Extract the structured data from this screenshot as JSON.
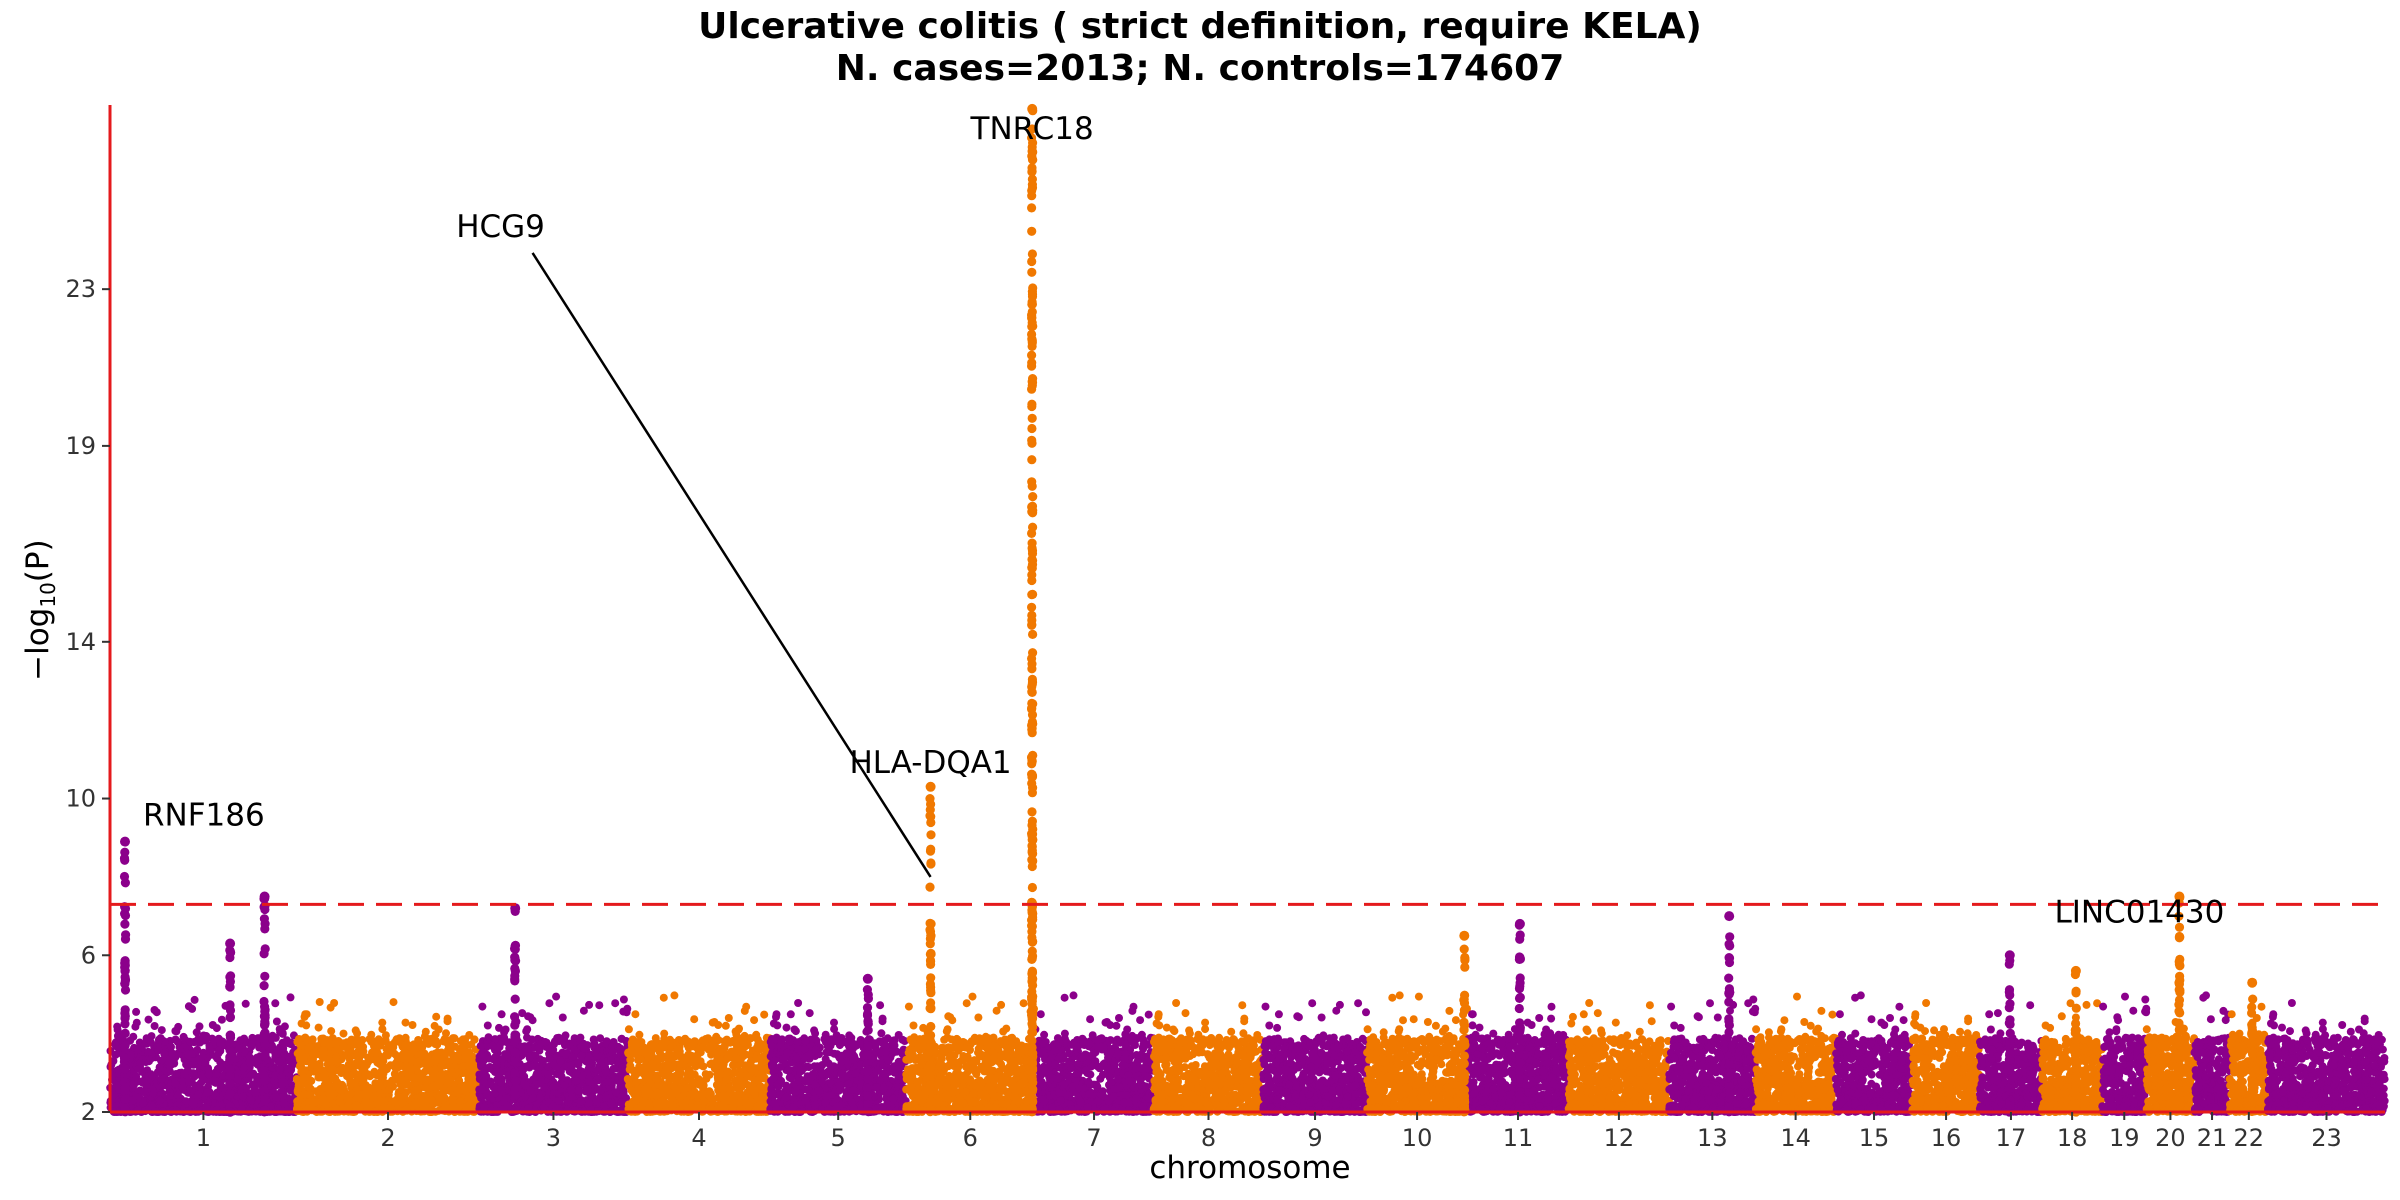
{
  "title_line1": "Ulcerative colitis ( strict definition, require KELA)",
  "title_line2": "N. cases=2013; N. controls=174607",
  "chart_data": {
    "type": "scatter",
    "subtype": "manhattan",
    "xlabel": "chromosome",
    "ylabel_prefix": "−log",
    "ylabel_sub": "10",
    "ylabel_suffix": "(P)",
    "ylim": [
      2,
      27.7
    ],
    "yticks": [
      2,
      6,
      10,
      14,
      19,
      23
    ],
    "significance_line": 7.3,
    "colors": {
      "odd": "#8B008B",
      "even": "#F07800",
      "axis": "#E41A1C",
      "threshold": "#E41A1C"
    },
    "chromosomes": [
      {
        "label": "1",
        "size": 249
      },
      {
        "label": "2",
        "size": 243
      },
      {
        "label": "3",
        "size": 198
      },
      {
        "label": "4",
        "size": 190
      },
      {
        "label": "5",
        "size": 181
      },
      {
        "label": "6",
        "size": 171
      },
      {
        "label": "7",
        "size": 159
      },
      {
        "label": "8",
        "size": 146
      },
      {
        "label": "9",
        "size": 138
      },
      {
        "label": "10",
        "size": 134
      },
      {
        "label": "11",
        "size": 135
      },
      {
        "label": "12",
        "size": 134
      },
      {
        "label": "13",
        "size": 115
      },
      {
        "label": "14",
        "size": 107
      },
      {
        "label": "15",
        "size": 102
      },
      {
        "label": "16",
        "size": 90
      },
      {
        "label": "17",
        "size": 83
      },
      {
        "label": "18",
        "size": 80
      },
      {
        "label": "19",
        "size": 59
      },
      {
        "label": "20",
        "size": 64
      },
      {
        "label": "21",
        "size": 47
      },
      {
        "label": "22",
        "size": 51
      },
      {
        "label": "23",
        "size": 156
      }
    ],
    "peaks": [
      {
        "chr": "1",
        "pos": 20,
        "max": 8.9
      },
      {
        "chr": "1",
        "pos": 160,
        "max": 6.3
      },
      {
        "chr": "1",
        "pos": 206,
        "max": 7.5
      },
      {
        "chr": "3",
        "pos": 48,
        "max": 7.2
      },
      {
        "chr": "5",
        "pos": 130,
        "max": 5.4
      },
      {
        "chr": "6",
        "pos": 32.6,
        "max": 10.3
      },
      {
        "chr": "6",
        "pos": 168,
        "max": 27.6
      },
      {
        "chr": "10",
        "pos": 130,
        "max": 6.5
      },
      {
        "chr": "11",
        "pos": 70,
        "max": 6.8
      },
      {
        "chr": "13",
        "pos": 80,
        "max": 7.0
      },
      {
        "chr": "17",
        "pos": 40,
        "max": 6.0
      },
      {
        "chr": "18",
        "pos": 45,
        "max": 5.6
      },
      {
        "chr": "20",
        "pos": 44,
        "max": 7.5
      },
      {
        "chr": "22",
        "pos": 30,
        "max": 5.3
      }
    ],
    "annotations": [
      {
        "gene": "RNF186",
        "chr": "1",
        "pos": 20,
        "y": 8.9
      },
      {
        "gene": "HCG9",
        "chr": "6",
        "pos": 32.6,
        "y": 8.0
      },
      {
        "gene": "HLA-DQA1",
        "chr": "6",
        "pos": 32.6,
        "y": 10.3
      },
      {
        "gene": "TNRC18",
        "chr": "6",
        "pos": 168,
        "y": 27.6
      },
      {
        "gene": "LINC01430",
        "chr": "20",
        "pos": 44,
        "y": 7.5
      }
    ]
  }
}
